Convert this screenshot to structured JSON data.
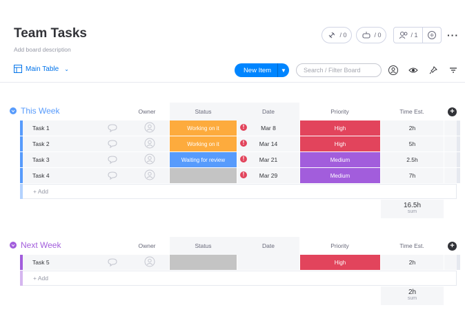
{
  "board": {
    "title": "Team Tasks",
    "description": "Add board description",
    "activity_count": "/ 0",
    "integrations_count": "/ 0",
    "members_count": "/ 1",
    "more_label": "···"
  },
  "toolbar": {
    "view_label": "Main Table",
    "new_item_label": "New Item",
    "search_placeholder": "Search / Filter Board"
  },
  "columns": {
    "owner": "Owner",
    "status": "Status",
    "date": "Date",
    "priority": "Priority",
    "time": "Time Est."
  },
  "colors": {
    "this_week": "#579bfc",
    "next_week": "#a25ddc",
    "working": "#fdab3d",
    "waiting": "#579bfc",
    "empty": "#c4c4c4",
    "high": "#e2445c",
    "medium": "#a25ddc"
  },
  "groups": [
    {
      "title": "This Week",
      "rows": [
        {
          "name": "Task 1",
          "status": "Working on it",
          "status_color": "#fdab3d",
          "date": "Mar 8",
          "priority": "High",
          "priority_color": "#e2445c",
          "time": "2h"
        },
        {
          "name": "Task 2",
          "status": "Working on it",
          "status_color": "#fdab3d",
          "date": "Mar 14",
          "priority": "High",
          "priority_color": "#e2445c",
          "time": "5h"
        },
        {
          "name": "Task 3",
          "status": "Waiting for review",
          "status_color": "#579bfc",
          "date": "Mar 21",
          "priority": "Medium",
          "priority_color": "#a25ddc",
          "time": "2.5h"
        },
        {
          "name": "Task 4",
          "status": "",
          "status_color": "#c4c4c4",
          "date": "Mar 29",
          "priority": "Medium",
          "priority_color": "#a25ddc",
          "time": "7h"
        }
      ],
      "add_label": "+ Add",
      "sum_value": "16.5h",
      "sum_label": "sum"
    },
    {
      "title": "Next Week",
      "rows": [
        {
          "name": "Task 5",
          "status": "",
          "status_color": "#c4c4c4",
          "date": "",
          "priority": "High",
          "priority_color": "#e2445c",
          "time": "2h"
        }
      ],
      "add_label": "+ Add",
      "sum_value": "2h",
      "sum_label": "sum"
    }
  ]
}
